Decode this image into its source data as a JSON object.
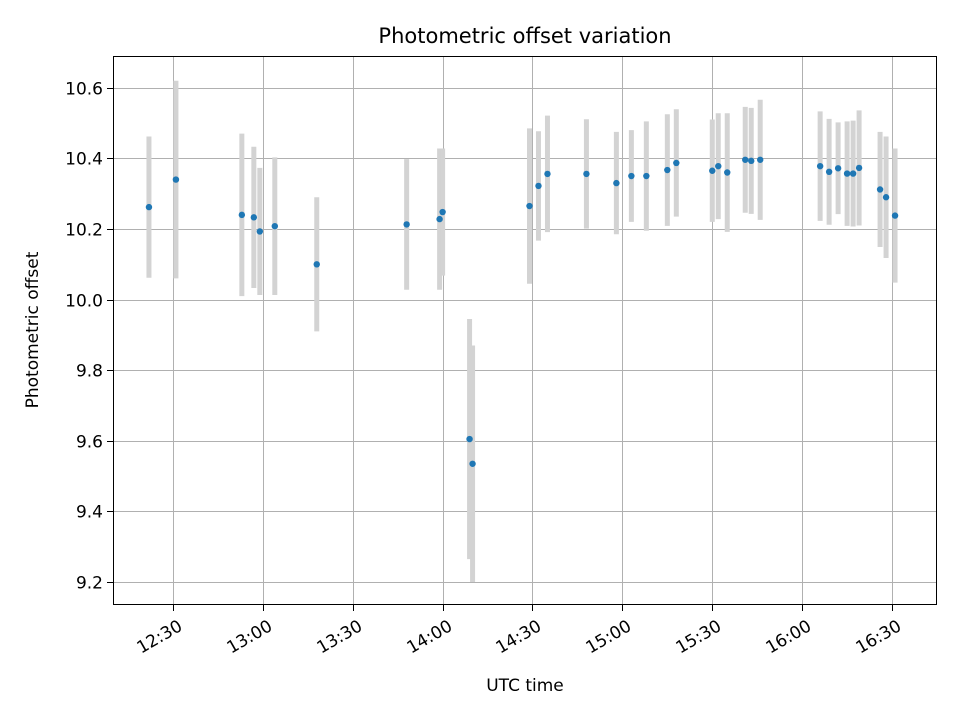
{
  "chart_data": {
    "type": "scatter",
    "title": "Photometric offset variation",
    "xlabel": "UTC time",
    "ylabel": "Photometric offset",
    "x_tick_labels": [
      "12:30",
      "13:00",
      "13:30",
      "14:00",
      "14:30",
      "15:00",
      "15:30",
      "16:00",
      "16:30"
    ],
    "y_ticks": [
      9.2,
      9.4,
      9.6,
      9.8,
      10.0,
      10.2,
      10.4,
      10.6
    ],
    "y_tick_labels": [
      "9.2",
      "9.4",
      "9.6",
      "9.8",
      "10.0",
      "10.2",
      "10.4",
      "10.6"
    ],
    "xlim": [
      "12:10",
      "16:45"
    ],
    "ylim": [
      9.135,
      10.69
    ],
    "grid": true,
    "colors": {
      "points": "#1f77b4",
      "errorbars": "#d3d3d3"
    },
    "points": [
      {
        "x": "12:22",
        "y": 10.262,
        "err": 0.2
      },
      {
        "x": "12:31",
        "y": 10.34,
        "err": 0.28
      },
      {
        "x": "12:53",
        "y": 10.24,
        "err": 0.23
      },
      {
        "x": "12:57",
        "y": 10.233,
        "err": 0.2
      },
      {
        "x": "12:59",
        "y": 10.193,
        "err": 0.18
      },
      {
        "x": "13:04",
        "y": 10.208,
        "err": 0.195
      },
      {
        "x": "13:18",
        "y": 10.1,
        "err": 0.19
      },
      {
        "x": "13:48",
        "y": 10.213,
        "err": 0.185
      },
      {
        "x": "13:59",
        "y": 10.228,
        "err": 0.2
      },
      {
        "x": "14:00",
        "y": 10.248,
        "err": 0.18
      },
      {
        "x": "14:09",
        "y": 9.605,
        "err": 0.34
      },
      {
        "x": "14:10",
        "y": 9.535,
        "err": 0.335
      },
      {
        "x": "14:29",
        "y": 10.265,
        "err": 0.22
      },
      {
        "x": "14:32",
        "y": 10.322,
        "err": 0.155
      },
      {
        "x": "14:35",
        "y": 10.356,
        "err": 0.165
      },
      {
        "x": "14:48",
        "y": 10.356,
        "err": 0.155
      },
      {
        "x": "14:58",
        "y": 10.33,
        "err": 0.145
      },
      {
        "x": "15:03",
        "y": 10.35,
        "err": 0.13
      },
      {
        "x": "15:08",
        "y": 10.35,
        "err": 0.155
      },
      {
        "x": "15:15",
        "y": 10.367,
        "err": 0.158
      },
      {
        "x": "15:18",
        "y": 10.387,
        "err": 0.152
      },
      {
        "x": "15:30",
        "y": 10.365,
        "err": 0.145
      },
      {
        "x": "15:32",
        "y": 10.378,
        "err": 0.15
      },
      {
        "x": "15:35",
        "y": 10.36,
        "err": 0.168
      },
      {
        "x": "15:41",
        "y": 10.396,
        "err": 0.15
      },
      {
        "x": "15:43",
        "y": 10.393,
        "err": 0.15
      },
      {
        "x": "15:46",
        "y": 10.396,
        "err": 0.17
      },
      {
        "x": "16:06",
        "y": 10.378,
        "err": 0.155
      },
      {
        "x": "16:09",
        "y": 10.362,
        "err": 0.15
      },
      {
        "x": "16:12",
        "y": 10.372,
        "err": 0.13
      },
      {
        "x": "16:15",
        "y": 10.357,
        "err": 0.148
      },
      {
        "x": "16:17",
        "y": 10.357,
        "err": 0.15
      },
      {
        "x": "16:19",
        "y": 10.373,
        "err": 0.163
      },
      {
        "x": "16:26",
        "y": 10.312,
        "err": 0.163
      },
      {
        "x": "16:28",
        "y": 10.29,
        "err": 0.172
      },
      {
        "x": "16:31",
        "y": 10.238,
        "err": 0.19
      }
    ]
  }
}
